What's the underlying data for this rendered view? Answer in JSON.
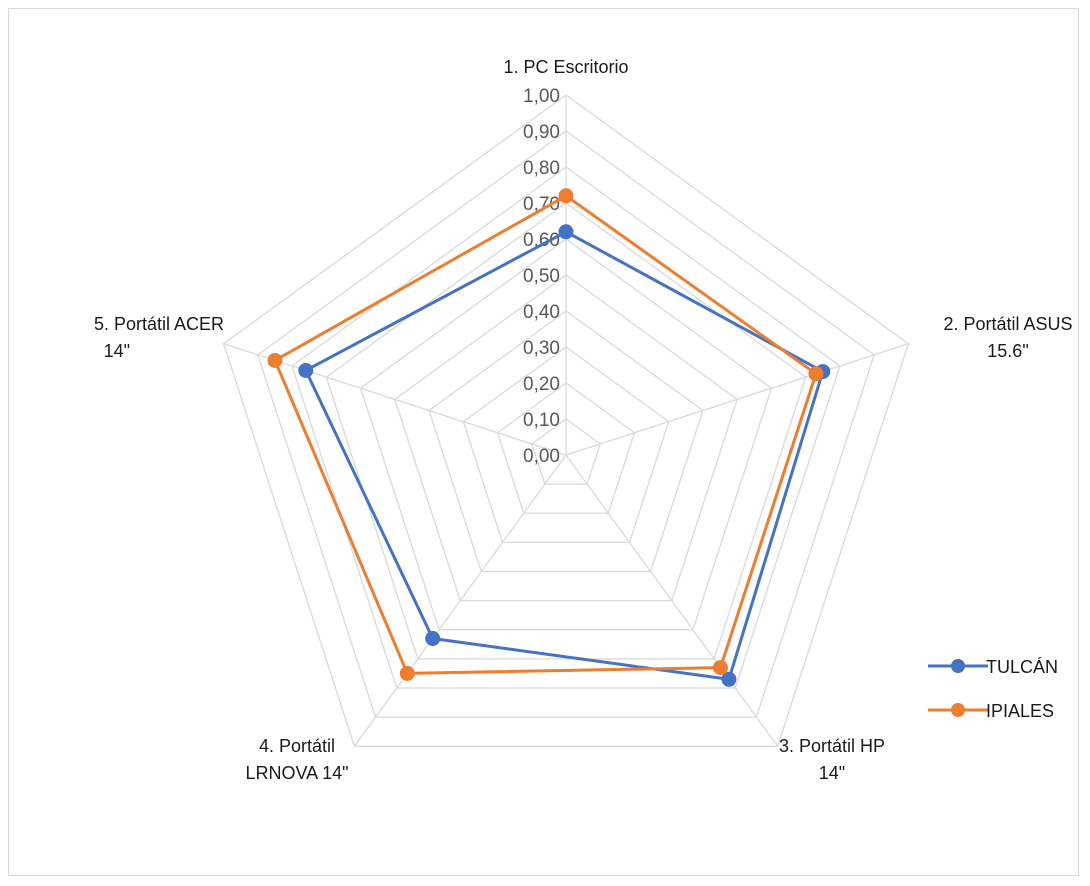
{
  "chart_data": {
    "type": "radar",
    "categories": [
      [
        "1. PC Escritorio"
      ],
      [
        "2. Portátil ASUS",
        "15.6\""
      ],
      [
        "3. Portátil HP",
        "14\""
      ],
      [
        "4. Portátil",
        "LRNOVA 14\""
      ],
      [
        "5. Portátil ACER",
        "14\""
      ]
    ],
    "tick_labels": [
      "0,00",
      "0,10",
      "0,20",
      "0,30",
      "0,40",
      "0,50",
      "0,60",
      "0,70",
      "0,80",
      "0,90",
      "1,00"
    ],
    "rlim": [
      0,
      1
    ],
    "grid": true,
    "legend_position": "right",
    "series": [
      {
        "name": "TULCÁN",
        "color": "#4472C4",
        "values": [
          0.62,
          0.75,
          0.77,
          0.63,
          0.76
        ]
      },
      {
        "name": "IPIALES",
        "color": "#ED7D31",
        "values": [
          0.72,
          0.73,
          0.73,
          0.75,
          0.85
        ]
      }
    ],
    "grid_color": "#d9d9d9"
  }
}
